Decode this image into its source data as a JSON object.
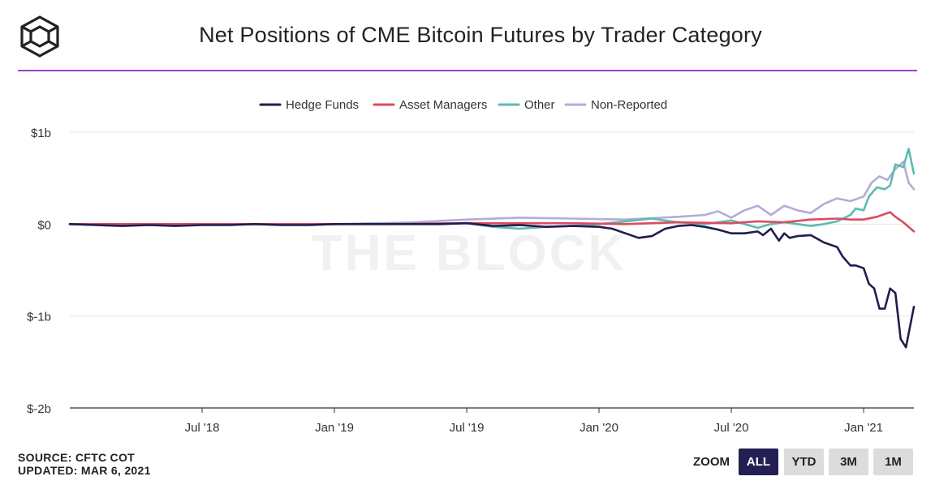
{
  "title": "Net Positions of CME Bitcoin Futures by Trader Category",
  "watermark": "THE BLOCK",
  "footer": {
    "source": "SOURCE: CFTC COT",
    "updated": "UPDATED: MAR 6, 2021"
  },
  "zoom": {
    "label": "ZOOM",
    "buttons": [
      "ALL",
      "YTD",
      "3M",
      "1M"
    ],
    "active": "ALL"
  },
  "colors": {
    "accent": "#9b3fc8",
    "active_button": "#241f53"
  },
  "chart_data": {
    "type": "line",
    "title": "Net Positions of CME Bitcoin Futures by Trader Category",
    "xlabel": "",
    "ylabel": "",
    "ylim": [
      -2,
      1
    ],
    "xlim": [
      2018.0,
      2021.19
    ],
    "y_ticks": [
      1,
      0,
      -1,
      -2
    ],
    "y_tick_labels": [
      "$1b",
      "$0",
      "$-1b",
      "$-2b"
    ],
    "x_ticks": [
      2018.5,
      2019.0,
      2019.5,
      2020.0,
      2020.5,
      2021.0
    ],
    "x_tick_labels": [
      "Jul '18",
      "Jan '19",
      "Jul '19",
      "Jan '20",
      "Jul '20",
      "Jan '21"
    ],
    "grid": "horizontal",
    "legend_position": "top-center",
    "series": [
      {
        "name": "Hedge Funds",
        "color": "#221c4e",
        "x": [
          2018.0,
          2018.1,
          2018.2,
          2018.3,
          2018.4,
          2018.5,
          2018.6,
          2018.7,
          2018.8,
          2018.9,
          2019.0,
          2019.2,
          2019.4,
          2019.5,
          2019.6,
          2019.7,
          2019.8,
          2019.9,
          2020.0,
          2020.05,
          2020.1,
          2020.15,
          2020.2,
          2020.25,
          2020.3,
          2020.35,
          2020.4,
          2020.45,
          2020.5,
          2020.55,
          2020.6,
          2020.62,
          2020.65,
          2020.68,
          2020.7,
          2020.72,
          2020.75,
          2020.8,
          2020.85,
          2020.9,
          2020.92,
          2020.95,
          2020.97,
          2021.0,
          2021.02,
          2021.04,
          2021.06,
          2021.08,
          2021.1,
          2021.12,
          2021.14,
          2021.16,
          2021.19
        ],
        "y": [
          0.0,
          -0.01,
          -0.02,
          -0.01,
          -0.02,
          -0.01,
          -0.01,
          0.0,
          -0.01,
          -0.01,
          0.0,
          0.0,
          0.0,
          0.01,
          -0.02,
          -0.01,
          -0.03,
          -0.02,
          -0.03,
          -0.05,
          -0.1,
          -0.15,
          -0.13,
          -0.05,
          -0.02,
          -0.01,
          -0.03,
          -0.06,
          -0.1,
          -0.1,
          -0.08,
          -0.12,
          -0.05,
          -0.18,
          -0.1,
          -0.15,
          -0.13,
          -0.12,
          -0.2,
          -0.25,
          -0.35,
          -0.45,
          -0.45,
          -0.48,
          -0.65,
          -0.7,
          -0.92,
          -0.92,
          -0.7,
          -0.75,
          -1.25,
          -1.34,
          -0.9
        ]
      },
      {
        "name": "Asset Managers",
        "color": "#db4c61",
        "x": [
          2018.0,
          2018.3,
          2018.6,
          2018.9,
          2019.2,
          2019.5,
          2019.7,
          2019.9,
          2020.1,
          2020.3,
          2020.5,
          2020.6,
          2020.7,
          2020.8,
          2020.9,
          2020.95,
          2021.0,
          2021.05,
          2021.1,
          2021.12,
          2021.15,
          2021.19
        ],
        "y": [
          0.0,
          0.0,
          0.0,
          0.0,
          0.0,
          0.01,
          0.01,
          0.01,
          0.0,
          0.02,
          0.01,
          0.03,
          0.02,
          0.05,
          0.06,
          0.05,
          0.05,
          0.08,
          0.13,
          0.08,
          0.02,
          -0.08
        ]
      },
      {
        "name": "Other",
        "color": "#5cbbb0",
        "x": [
          2018.0,
          2018.5,
          2019.0,
          2019.5,
          2019.6,
          2019.7,
          2019.8,
          2019.9,
          2020.0,
          2020.1,
          2020.2,
          2020.3,
          2020.4,
          2020.5,
          2020.55,
          2020.6,
          2020.65,
          2020.7,
          2020.75,
          2020.8,
          2020.85,
          2020.9,
          2020.95,
          2020.97,
          2021.0,
          2021.02,
          2021.05,
          2021.08,
          2021.1,
          2021.12,
          2021.15,
          2021.17,
          2021.19
        ],
        "y": [
          0.0,
          0.0,
          0.0,
          0.01,
          -0.03,
          -0.05,
          -0.03,
          -0.02,
          0.0,
          0.03,
          0.06,
          0.02,
          0.0,
          0.04,
          0.0,
          -0.04,
          0.0,
          0.02,
          0.0,
          -0.02,
          0.0,
          0.03,
          0.1,
          0.17,
          0.15,
          0.3,
          0.4,
          0.38,
          0.42,
          0.65,
          0.62,
          0.82,
          0.55
        ]
      },
      {
        "name": "Non-Reported",
        "color": "#b3acd7",
        "x": [
          2018.0,
          2018.5,
          2019.0,
          2019.3,
          2019.5,
          2019.7,
          2019.9,
          2020.1,
          2020.3,
          2020.4,
          2020.45,
          2020.5,
          2020.55,
          2020.6,
          2020.65,
          2020.7,
          2020.75,
          2020.8,
          2020.85,
          2020.9,
          2020.95,
          2021.0,
          2021.03,
          2021.06,
          2021.09,
          2021.12,
          2021.15,
          2021.17,
          2021.19
        ],
        "y": [
          0.0,
          0.0,
          0.0,
          0.02,
          0.05,
          0.07,
          0.06,
          0.05,
          0.08,
          0.1,
          0.14,
          0.07,
          0.15,
          0.2,
          0.1,
          0.2,
          0.15,
          0.12,
          0.22,
          0.28,
          0.25,
          0.3,
          0.45,
          0.52,
          0.48,
          0.6,
          0.68,
          0.45,
          0.38
        ]
      }
    ]
  }
}
